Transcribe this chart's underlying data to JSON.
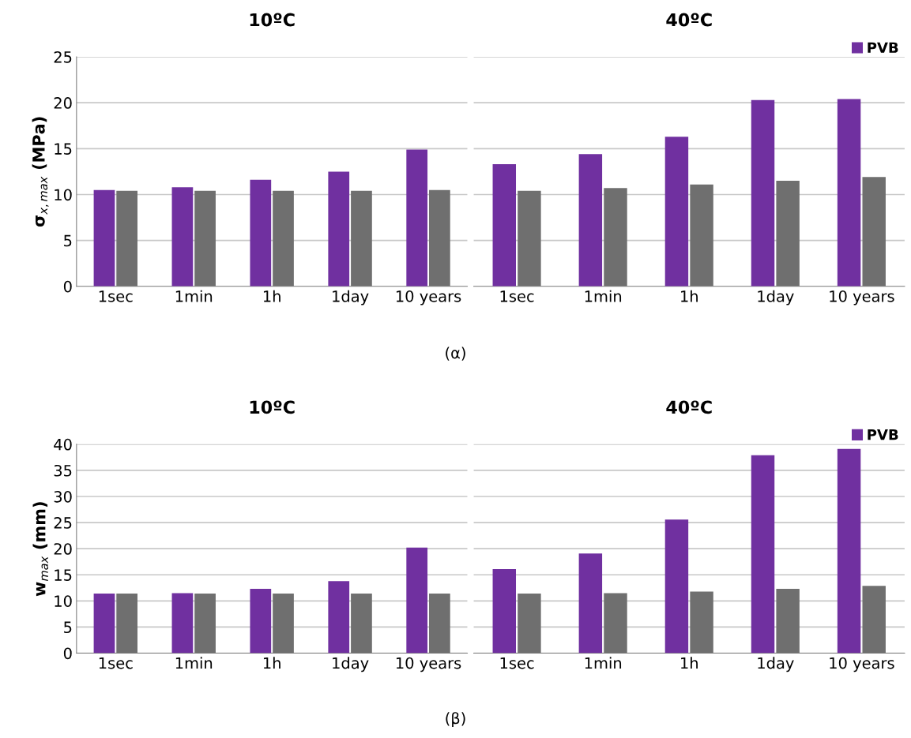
{
  "chart_data": [
    {
      "type": "bar",
      "title": "10ºC",
      "ylabel": "σ$_{x,max}$ (MPa)",
      "categories": [
        "1sec",
        "1min",
        "1h",
        "1day",
        "10 years"
      ],
      "series": [
        {
          "color": "#7030a0",
          "values": [
            10.5,
            10.8,
            11.6,
            12.5,
            14.9
          ]
        },
        {
          "color": "#6f6f6f",
          "values": [
            10.4,
            10.4,
            10.4,
            10.4,
            10.5
          ]
        }
      ],
      "ylim": [
        0,
        25
      ],
      "yticks": [
        0,
        5,
        10,
        15,
        20,
        25
      ],
      "grid": "y",
      "annotations": [
        "(α)"
      ]
    },
    {
      "type": "bar",
      "title": "40ºC",
      "categories": [
        "1sec",
        "1min",
        "1h",
        "1day",
        "10 years"
      ],
      "series": [
        {
          "name": "PVB",
          "color": "#7030a0",
          "values": [
            13.3,
            14.4,
            16.3,
            20.3,
            20.4
          ]
        },
        {
          "color": "#6f6f6f",
          "values": [
            10.4,
            10.7,
            11.1,
            11.5,
            11.9
          ]
        }
      ],
      "ylim": [
        0,
        25
      ],
      "yticks": [
        0,
        5,
        10,
        15,
        20,
        25
      ],
      "grid": "y",
      "legend": "top right",
      "tick_labels": "x"
    },
    {
      "type": "bar",
      "title": "10ºC",
      "ylabel": "w$_{max}$ (mm)",
      "categories": [
        "1sec",
        "1min",
        "1h",
        "1day",
        "10 years"
      ],
      "series": [
        {
          "color": "#7030a0",
          "values": [
            11.4,
            11.5,
            12.3,
            13.8,
            20.2
          ]
        },
        {
          "color": "#6f6f6f",
          "values": [
            11.4,
            11.4,
            11.4,
            11.4,
            11.4
          ]
        }
      ],
      "ylim": [
        0,
        40
      ],
      "yticks": [
        0,
        5,
        10,
        15,
        20,
        25,
        30,
        35,
        40
      ],
      "grid": "y",
      "annotations": [
        "(β)"
      ]
    },
    {
      "type": "bar",
      "title": "40ºC",
      "categories": [
        "1sec",
        "1min",
        "1h",
        "1day",
        "10 years"
      ],
      "series": [
        {
          "name": "PVB",
          "color": "#7030a0",
          "values": [
            16.1,
            19.1,
            25.6,
            37.9,
            39.1
          ]
        },
        {
          "color": "#6f6f6f",
          "values": [
            11.4,
            11.5,
            11.8,
            12.3,
            12.9
          ]
        }
      ],
      "ylim": [
        0,
        40
      ],
      "yticks": [
        0,
        5,
        10,
        15,
        20,
        25,
        30,
        35,
        40
      ],
      "grid": "y",
      "legend": "top right",
      "tick_labels": "x"
    }
  ]
}
